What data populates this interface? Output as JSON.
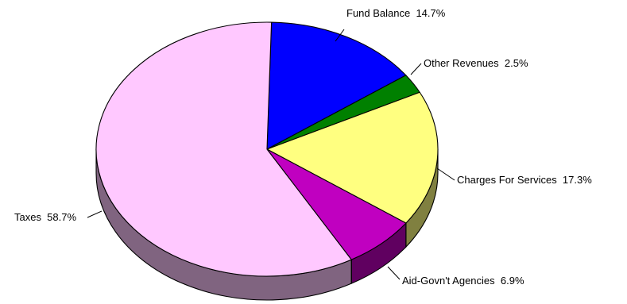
{
  "chart_data": {
    "type": "pie",
    "title": "",
    "three_d": true,
    "slices": [
      {
        "key": "fund-balance",
        "label": "Fund Balance",
        "pct_text": "14.7%",
        "value": 14.7,
        "color": "#0000ff",
        "side_color": "#00007f"
      },
      {
        "key": "other-revenues",
        "label": "Other Revenues",
        "pct_text": "2.5%",
        "value": 2.5,
        "color": "#008000",
        "side_color": "#004000"
      },
      {
        "key": "charges-for-services",
        "label": "Charges For Services",
        "pct_text": "17.3%",
        "value": 17.3,
        "color": "#ffff80",
        "side_color": "#808040"
      },
      {
        "key": "aid-govnt-agencies",
        "label": "Aid-Govn't Agencies",
        "pct_text": "6.9%",
        "value": 6.9,
        "color": "#c000c0",
        "side_color": "#600060"
      },
      {
        "key": "taxes",
        "label": "Taxes",
        "pct_text": "58.7%",
        "value": 58.7,
        "color": "#ffc8ff",
        "side_color": "#806480"
      }
    ]
  }
}
